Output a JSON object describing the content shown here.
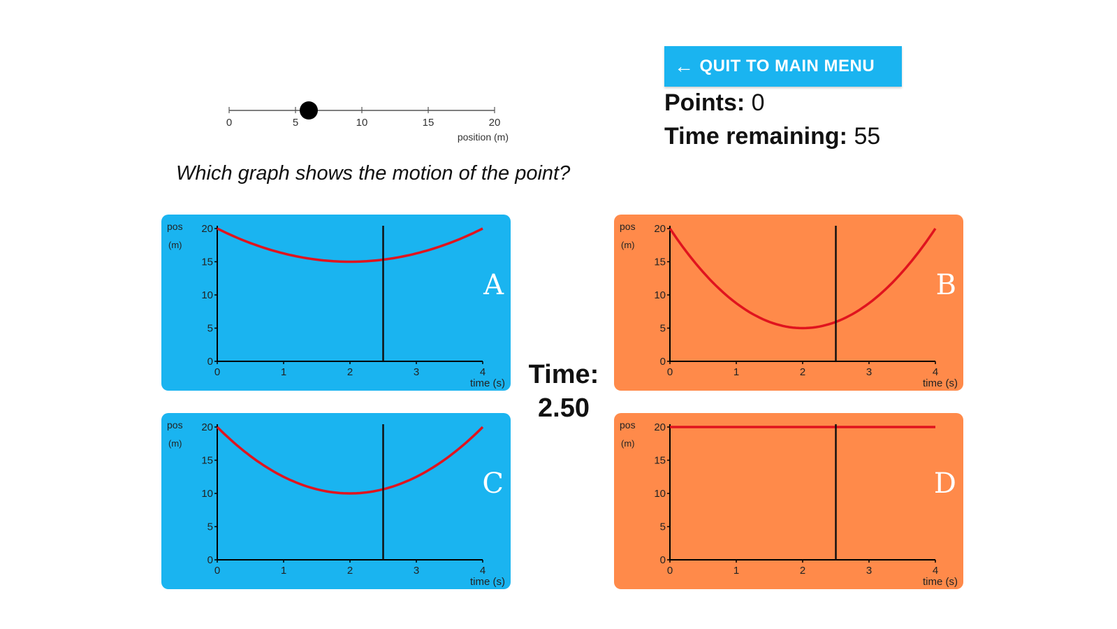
{
  "number_line": {
    "ticks": [
      "0",
      "5",
      "10",
      "15",
      "20"
    ],
    "label": "position (m)",
    "min": 0,
    "max": 20,
    "point_value": 6
  },
  "quit_button": {
    "label": "QUIT TO MAIN MENU",
    "icon": "arrow-left-icon"
  },
  "points": {
    "label": "Points:",
    "value": "0"
  },
  "time_remaining": {
    "label": "Time remaining:",
    "value": "55"
  },
  "question": "Which graph shows the motion of the point?",
  "time": {
    "label": "Time:",
    "value": "2.50"
  },
  "colors": {
    "blue": "#1ab4f0",
    "orange": "#ff8a4a",
    "curve": "#e0141e",
    "cursor": "#111111"
  },
  "graphs": [
    {
      "letter": "A",
      "color": "blue",
      "chart_data": {
        "type": "line",
        "ylabel": "pos (m)",
        "xlabel": "time (s)",
        "xlim": [
          0,
          4
        ],
        "ylim": [
          0,
          20
        ],
        "x_ticks": [
          "0",
          "1",
          "2",
          "3",
          "4"
        ],
        "y_ticks": [
          "0",
          "5",
          "10",
          "15",
          "20"
        ],
        "curve": {
          "form": "parabola",
          "vertex_t": 2,
          "vertex_pos": 15,
          "start_pos": 20
        },
        "cursor_t": 2.5
      }
    },
    {
      "letter": "B",
      "color": "orange",
      "chart_data": {
        "type": "line",
        "ylabel": "pos (m)",
        "xlabel": "time (s)",
        "xlim": [
          0,
          4
        ],
        "ylim": [
          0,
          20
        ],
        "x_ticks": [
          "0",
          "1",
          "2",
          "3",
          "4"
        ],
        "y_ticks": [
          "0",
          "5",
          "10",
          "15",
          "20"
        ],
        "curve": {
          "form": "parabola",
          "vertex_t": 2,
          "vertex_pos": 5,
          "start_pos": 20
        },
        "cursor_t": 2.5
      }
    },
    {
      "letter": "C",
      "color": "blue",
      "chart_data": {
        "type": "line",
        "ylabel": "pos (m)",
        "xlabel": "time (s)",
        "xlim": [
          0,
          4
        ],
        "ylim": [
          0,
          20
        ],
        "x_ticks": [
          "0",
          "1",
          "2",
          "3",
          "4"
        ],
        "y_ticks": [
          "0",
          "5",
          "10",
          "15",
          "20"
        ],
        "curve": {
          "form": "parabola",
          "vertex_t": 2,
          "vertex_pos": 10,
          "start_pos": 20
        },
        "cursor_t": 2.5
      }
    },
    {
      "letter": "D",
      "color": "orange",
      "chart_data": {
        "type": "line",
        "ylabel": "pos (m)",
        "xlabel": "time (s)",
        "xlim": [
          0,
          4
        ],
        "ylim": [
          0,
          20
        ],
        "x_ticks": [
          "0",
          "1",
          "2",
          "3",
          "4"
        ],
        "y_ticks": [
          "0",
          "5",
          "10",
          "15",
          "20"
        ],
        "curve": {
          "form": "constant",
          "vertex_t": 2,
          "vertex_pos": 20,
          "start_pos": 20
        },
        "cursor_t": 2.5
      }
    }
  ]
}
